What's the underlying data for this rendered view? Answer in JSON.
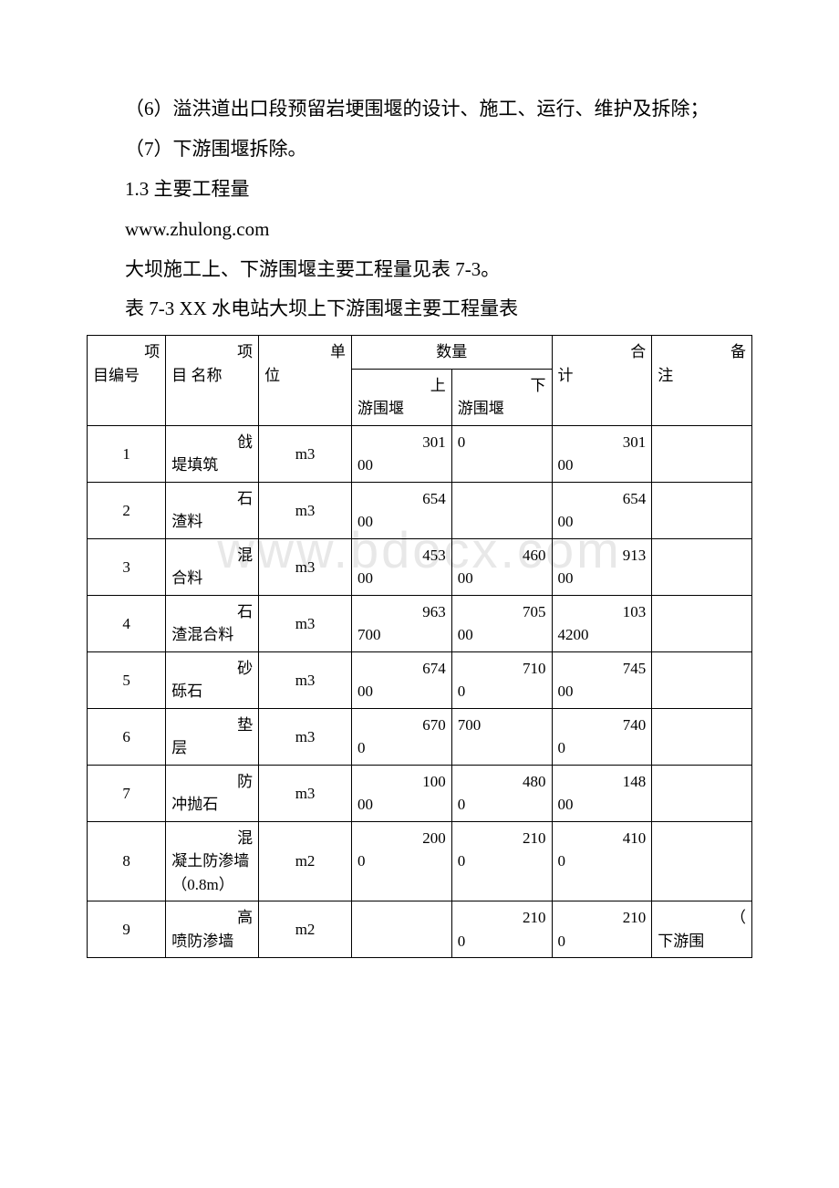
{
  "watermark": "www.bdocx.com",
  "paragraphs": {
    "p1": "（6）溢洪道出口段预留岩埂围堰的设计、施工、运行、维护及拆除；",
    "p2": "（7）下游围堰拆除。",
    "p3": "1.3 主要工程量",
    "p4": "www.zhulong.com",
    "p5": "大坝施工上、下游围堰主要工程量见表 7-3。",
    "p6": "表 7-3 XX 水电站大坝上下游围堰主要工程量表"
  },
  "table": {
    "headers": {
      "col0_a": "项",
      "col0_b": "目编号",
      "col1_a": "项",
      "col1_b": "目 名称",
      "col2_a": "单",
      "col2_b": "位",
      "col3": "数量",
      "col3a_a": "上",
      "col3a_b": "游围堰",
      "col3b_a": "下",
      "col3b_b": "游围堰",
      "col4_a": "合",
      "col4_b": "计",
      "col5_a": "备",
      "col5_b": "注"
    },
    "rows": [
      {
        "idx": "1",
        "name_a": "戗",
        "name_b": "堤填筑",
        "unit": "m3",
        "up_a": "301",
        "up_b": "00",
        "down_a": "",
        "down_b": "0",
        "sum_a": "301",
        "sum_b": "00",
        "note_a": "",
        "note_b": ""
      },
      {
        "idx": "2",
        "name_a": "石",
        "name_b": "渣料",
        "unit": "m3",
        "up_a": "654",
        "up_b": "00",
        "down_a": "",
        "down_b": "",
        "sum_a": "654",
        "sum_b": "00",
        "note_a": "",
        "note_b": ""
      },
      {
        "idx": "3",
        "name_a": "混",
        "name_b": "合料",
        "unit": "m3",
        "up_a": "453",
        "up_b": "00",
        "down_a": "460",
        "down_b": "00",
        "sum_a": "913",
        "sum_b": "00",
        "note_a": "",
        "note_b": ""
      },
      {
        "idx": "4",
        "name_a": "石",
        "name_b": "渣混合料",
        "unit": "m3",
        "up_a": "963",
        "up_b": "700",
        "down_a": "705",
        "down_b": "00",
        "sum_a": "103",
        "sum_b": "4200",
        "note_a": "",
        "note_b": ""
      },
      {
        "idx": "5",
        "name_a": "砂",
        "name_b": "砾石",
        "unit": "m3",
        "up_a": "674",
        "up_b": "00",
        "down_a": "710",
        "down_b": "0",
        "sum_a": "745",
        "sum_b": "00",
        "note_a": "",
        "note_b": ""
      },
      {
        "idx": "6",
        "name_a": "垫",
        "name_b": "层",
        "unit": "m3",
        "up_a": "670",
        "up_b": "0",
        "down_a": "",
        "down_b": "700",
        "sum_a": "740",
        "sum_b": "0",
        "note_a": "",
        "note_b": ""
      },
      {
        "idx": "7",
        "name_a": "防",
        "name_b": "冲抛石",
        "unit": "m3",
        "up_a": "100",
        "up_b": "00",
        "down_a": "480",
        "down_b": "0",
        "sum_a": "148",
        "sum_b": "00",
        "note_a": "",
        "note_b": ""
      },
      {
        "idx": "8",
        "name_a": "混",
        "name_b": "凝土防渗墙（0.8m）",
        "unit": "m2",
        "up_a": "200",
        "up_b": "0",
        "down_a": "210",
        "down_b": "0",
        "sum_a": "410",
        "sum_b": "0",
        "note_a": "",
        "note_b": ""
      },
      {
        "idx": "9",
        "name_a": "高",
        "name_b": "喷防渗墙",
        "unit": "m2",
        "up_a": "",
        "up_b": "",
        "down_a": "210",
        "down_b": "0",
        "sum_a": "210",
        "sum_b": "0",
        "note_a": "（",
        "note_b": "下游围"
      }
    ]
  },
  "styles": {
    "background_color": "#ffffff",
    "text_color": "#000000",
    "border_color": "#000000",
    "watermark_color": "#e8e8e8",
    "body_fontsize": 21,
    "table_fontsize": 17
  }
}
